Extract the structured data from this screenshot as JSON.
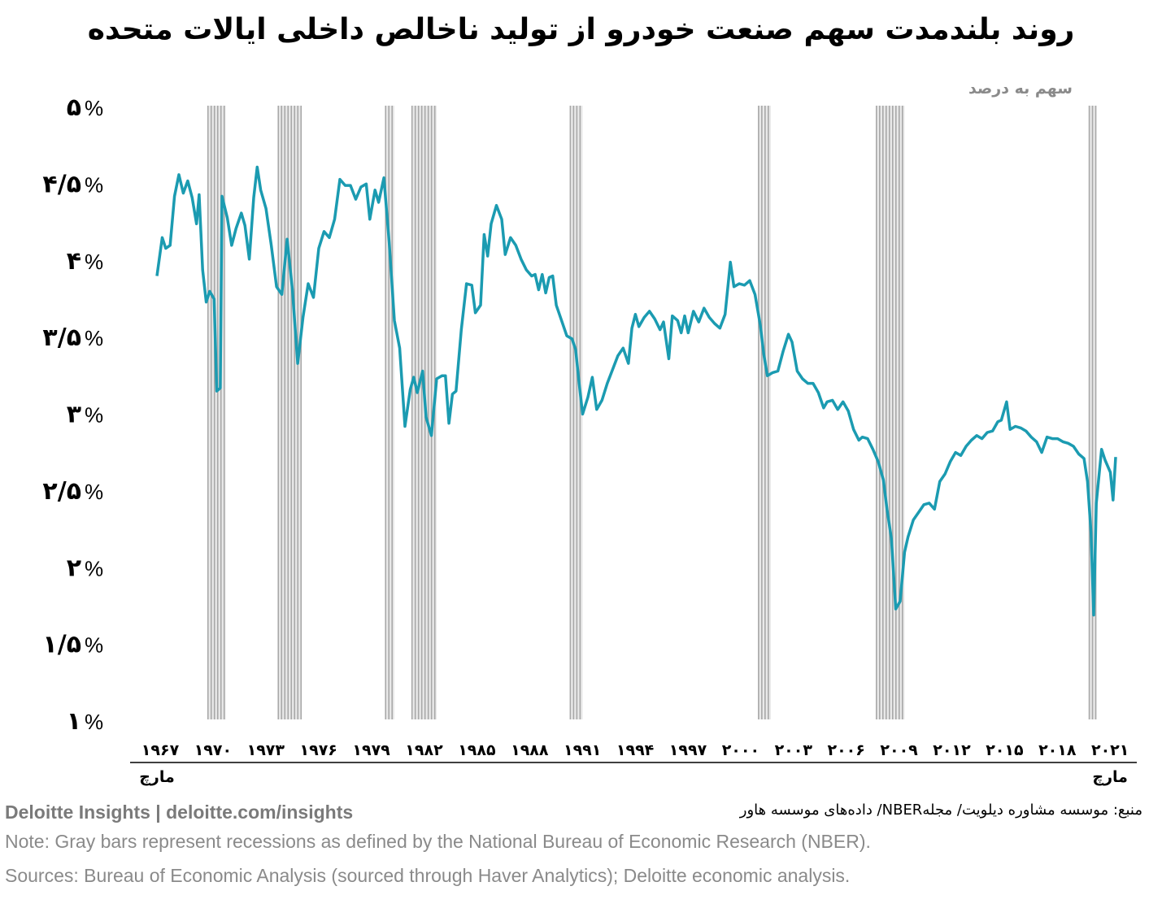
{
  "chart_data": {
    "type": "line",
    "title": "روند بلندمدت سهم صنعت خودرو از تولید ناخالص داخلی ایالات متحده",
    "ylabel": "سهم به درصد",
    "ylim": [
      1,
      5
    ],
    "yticks": [
      {
        "value": 5,
        "label": "۵"
      },
      {
        "value": 4.5,
        "label": "۴/۵"
      },
      {
        "value": 4,
        "label": "۴"
      },
      {
        "value": 3.5,
        "label": "۳/۵"
      },
      {
        "value": 3,
        "label": "۳"
      },
      {
        "value": 2.5,
        "label": "۲/۵"
      },
      {
        "value": 2,
        "label": "۲"
      },
      {
        "value": 1.5,
        "label": "۱/۵"
      },
      {
        "value": 1,
        "label": "۱"
      }
    ],
    "ytick_suffix": "%",
    "xlim": [
      1967.0,
      2021.5
    ],
    "xticks": [
      {
        "value": 1967,
        "label": "۱۹۶۷"
      },
      {
        "value": 1970,
        "label": "۱۹۷۰"
      },
      {
        "value": 1973,
        "label": "۱۹۷۳"
      },
      {
        "value": 1976,
        "label": "۱۹۷۶"
      },
      {
        "value": 1979,
        "label": "۱۹۷۹"
      },
      {
        "value": 1982,
        "label": "۱۹۸۲"
      },
      {
        "value": 1985,
        "label": "۱۹۸۵"
      },
      {
        "value": 1988,
        "label": "۱۹۸۸"
      },
      {
        "value": 1991,
        "label": "۱۹۹۱"
      },
      {
        "value": 1994,
        "label": "۱۹۹۴"
      },
      {
        "value": 1997,
        "label": "۱۹۹۷"
      },
      {
        "value": 2000,
        "label": "۲۰۰۰"
      },
      {
        "value": 2003,
        "label": "۲۰۰۳"
      },
      {
        "value": 2006,
        "label": "۲۰۰۶"
      },
      {
        "value": 2009,
        "label": "۲۰۰۹"
      },
      {
        "value": 2012,
        "label": "۲۰۱۲"
      },
      {
        "value": 2015,
        "label": "۲۰۱۵"
      },
      {
        "value": 2018,
        "label": "۲۰۱۸"
      },
      {
        "value": 2021,
        "label": "۲۰۲۱"
      }
    ],
    "start_label": "مارچ",
    "end_label": "مارچ",
    "recessions": [
      [
        1969.9,
        1970.9
      ],
      [
        1973.9,
        1975.2
      ],
      [
        1980.0,
        1980.5
      ],
      [
        1981.5,
        1982.9
      ],
      [
        1990.5,
        1991.2
      ],
      [
        2001.2,
        2001.9
      ],
      [
        2007.9,
        2009.5
      ],
      [
        2020.0,
        2020.4
      ]
    ],
    "series": [
      {
        "name": "سهم صنعت خودرو از تولید ناخالص داخلی",
        "color": "#1b9bb1",
        "points": [
          [
            1967.0,
            3.89
          ],
          [
            1967.3,
            4.14
          ],
          [
            1967.5,
            4.07
          ],
          [
            1967.75,
            4.09
          ],
          [
            1968.0,
            4.41
          ],
          [
            1968.25,
            4.55
          ],
          [
            1968.5,
            4.43
          ],
          [
            1968.75,
            4.51
          ],
          [
            1969.0,
            4.4
          ],
          [
            1969.25,
            4.23
          ],
          [
            1969.4,
            4.42
          ],
          [
            1969.6,
            3.93
          ],
          [
            1969.8,
            3.72
          ],
          [
            1970.0,
            3.79
          ],
          [
            1970.25,
            3.74
          ],
          [
            1970.4,
            3.14
          ],
          [
            1970.6,
            3.16
          ],
          [
            1970.7,
            4.41
          ],
          [
            1971.0,
            4.27
          ],
          [
            1971.25,
            4.09
          ],
          [
            1971.5,
            4.2
          ],
          [
            1971.8,
            4.3
          ],
          [
            1972.0,
            4.22
          ],
          [
            1972.25,
            4.0
          ],
          [
            1972.5,
            4.4
          ],
          [
            1972.7,
            4.6
          ],
          [
            1972.9,
            4.45
          ],
          [
            1973.2,
            4.33
          ],
          [
            1973.5,
            4.09
          ],
          [
            1973.8,
            3.82
          ],
          [
            1974.1,
            3.77
          ],
          [
            1974.4,
            4.13
          ],
          [
            1974.7,
            3.8
          ],
          [
            1975.0,
            3.32
          ],
          [
            1975.3,
            3.62
          ],
          [
            1975.6,
            3.84
          ],
          [
            1975.9,
            3.75
          ],
          [
            1976.2,
            4.07
          ],
          [
            1976.5,
            4.18
          ],
          [
            1976.8,
            4.14
          ],
          [
            1977.1,
            4.26
          ],
          [
            1977.4,
            4.52
          ],
          [
            1977.7,
            4.48
          ],
          [
            1978.0,
            4.48
          ],
          [
            1978.3,
            4.39
          ],
          [
            1978.6,
            4.47
          ],
          [
            1978.9,
            4.49
          ],
          [
            1979.1,
            4.26
          ],
          [
            1979.4,
            4.45
          ],
          [
            1979.6,
            4.37
          ],
          [
            1979.9,
            4.53
          ],
          [
            1980.2,
            4.11
          ],
          [
            1980.5,
            3.6
          ],
          [
            1980.8,
            3.42
          ],
          [
            1981.1,
            2.91
          ],
          [
            1981.4,
            3.15
          ],
          [
            1981.6,
            3.23
          ],
          [
            1981.8,
            3.13
          ],
          [
            1982.1,
            3.27
          ],
          [
            1982.3,
            2.97
          ],
          [
            1982.6,
            2.85
          ],
          [
            1982.9,
            3.22
          ],
          [
            1983.2,
            3.24
          ],
          [
            1983.4,
            3.24
          ],
          [
            1983.6,
            2.93
          ],
          [
            1983.8,
            3.12
          ],
          [
            1984.0,
            3.14
          ],
          [
            1984.3,
            3.54
          ],
          [
            1984.6,
            3.84
          ],
          [
            1984.9,
            3.83
          ],
          [
            1985.1,
            3.65
          ],
          [
            1985.4,
            3.7
          ],
          [
            1985.6,
            4.16
          ],
          [
            1985.8,
            4.02
          ],
          [
            1986.0,
            4.23
          ],
          [
            1986.3,
            4.35
          ],
          [
            1986.6,
            4.26
          ],
          [
            1986.8,
            4.03
          ],
          [
            1987.1,
            4.14
          ],
          [
            1987.4,
            4.09
          ],
          [
            1987.7,
            4.0
          ],
          [
            1988.0,
            3.93
          ],
          [
            1988.3,
            3.89
          ],
          [
            1988.5,
            3.9
          ],
          [
            1988.7,
            3.8
          ],
          [
            1988.9,
            3.9
          ],
          [
            1989.1,
            3.78
          ],
          [
            1989.3,
            3.88
          ],
          [
            1989.5,
            3.89
          ],
          [
            1989.7,
            3.7
          ],
          [
            1990.0,
            3.6
          ],
          [
            1990.3,
            3.5
          ],
          [
            1990.6,
            3.48
          ],
          [
            1990.8,
            3.41
          ],
          [
            1991.0,
            3.19
          ],
          [
            1991.2,
            2.99
          ],
          [
            1991.5,
            3.1
          ],
          [
            1991.75,
            3.23
          ],
          [
            1992.0,
            3.02
          ],
          [
            1992.3,
            3.08
          ],
          [
            1992.6,
            3.19
          ],
          [
            1992.9,
            3.28
          ],
          [
            1993.2,
            3.37
          ],
          [
            1993.5,
            3.42
          ],
          [
            1993.8,
            3.32
          ],
          [
            1994.0,
            3.55
          ],
          [
            1994.2,
            3.64
          ],
          [
            1994.4,
            3.56
          ],
          [
            1994.7,
            3.62
          ],
          [
            1995.0,
            3.66
          ],
          [
            1995.3,
            3.61
          ],
          [
            1995.6,
            3.54
          ],
          [
            1995.8,
            3.59
          ],
          [
            1996.1,
            3.35
          ],
          [
            1996.3,
            3.63
          ],
          [
            1996.6,
            3.6
          ],
          [
            1996.8,
            3.52
          ],
          [
            1997.0,
            3.63
          ],
          [
            1997.2,
            3.52
          ],
          [
            1997.5,
            3.66
          ],
          [
            1997.8,
            3.59
          ],
          [
            1998.1,
            3.68
          ],
          [
            1998.4,
            3.62
          ],
          [
            1998.7,
            3.58
          ],
          [
            1999.0,
            3.55
          ],
          [
            1999.3,
            3.64
          ],
          [
            1999.6,
            3.98
          ],
          [
            1999.8,
            3.82
          ],
          [
            2000.1,
            3.84
          ],
          [
            2000.4,
            3.83
          ],
          [
            2000.7,
            3.86
          ],
          [
            2001.0,
            3.77
          ],
          [
            2001.3,
            3.57
          ],
          [
            2001.5,
            3.38
          ],
          [
            2001.7,
            3.24
          ],
          [
            2002.0,
            3.26
          ],
          [
            2002.3,
            3.27
          ],
          [
            2002.6,
            3.4
          ],
          [
            2002.9,
            3.51
          ],
          [
            2003.1,
            3.46
          ],
          [
            2003.4,
            3.27
          ],
          [
            2003.7,
            3.22
          ],
          [
            2004.0,
            3.19
          ],
          [
            2004.3,
            3.19
          ],
          [
            2004.6,
            3.13
          ],
          [
            2004.9,
            3.03
          ],
          [
            2005.1,
            3.07
          ],
          [
            2005.4,
            3.08
          ],
          [
            2005.7,
            3.02
          ],
          [
            2006.0,
            3.07
          ],
          [
            2006.3,
            3.01
          ],
          [
            2006.6,
            2.89
          ],
          [
            2006.9,
            2.82
          ],
          [
            2007.1,
            2.84
          ],
          [
            2007.4,
            2.83
          ],
          [
            2007.7,
            2.76
          ],
          [
            2008.0,
            2.68
          ],
          [
            2008.3,
            2.56
          ],
          [
            2008.5,
            2.37
          ],
          [
            2008.75,
            2.18
          ],
          [
            2009.0,
            1.72
          ],
          [
            2009.25,
            1.77
          ],
          [
            2009.5,
            2.09
          ],
          [
            2009.7,
            2.19
          ],
          [
            2010.0,
            2.3
          ],
          [
            2010.3,
            2.35
          ],
          [
            2010.6,
            2.4
          ],
          [
            2010.9,
            2.41
          ],
          [
            2011.2,
            2.37
          ],
          [
            2011.5,
            2.55
          ],
          [
            2011.8,
            2.6
          ],
          [
            2012.1,
            2.68
          ],
          [
            2012.4,
            2.74
          ],
          [
            2012.7,
            2.72
          ],
          [
            2013.0,
            2.78
          ],
          [
            2013.3,
            2.82
          ],
          [
            2013.6,
            2.85
          ],
          [
            2013.9,
            2.83
          ],
          [
            2014.2,
            2.87
          ],
          [
            2014.5,
            2.88
          ],
          [
            2014.8,
            2.94
          ],
          [
            2015.0,
            2.95
          ],
          [
            2015.3,
            3.07
          ],
          [
            2015.5,
            2.89
          ],
          [
            2015.8,
            2.91
          ],
          [
            2016.1,
            2.9
          ],
          [
            2016.4,
            2.88
          ],
          [
            2016.7,
            2.84
          ],
          [
            2017.0,
            2.81
          ],
          [
            2017.3,
            2.74
          ],
          [
            2017.6,
            2.84
          ],
          [
            2017.9,
            2.83
          ],
          [
            2018.2,
            2.83
          ],
          [
            2018.5,
            2.81
          ],
          [
            2018.8,
            2.8
          ],
          [
            2019.1,
            2.78
          ],
          [
            2019.4,
            2.73
          ],
          [
            2019.7,
            2.7
          ],
          [
            2019.9,
            2.55
          ],
          [
            2020.1,
            2.22
          ],
          [
            2020.25,
            1.68
          ],
          [
            2020.4,
            2.41
          ],
          [
            2020.7,
            2.76
          ],
          [
            2020.9,
            2.69
          ],
          [
            2021.2,
            2.61
          ],
          [
            2021.35,
            2.43
          ],
          [
            2021.5,
            2.71
          ]
        ]
      }
    ]
  },
  "footer": {
    "brand": "Deloitte Insights | deloitte.com/insights",
    "source_fa": "منبع: موسسه مشاوره دیلویت/ مجلهNBER/ داده‌های موسسه هاور",
    "note": "Note: Gray bars represent recessions as defined by the National Bureau of Economic Research (NBER).",
    "sources": "Sources: Bureau of Economic Analysis (sourced through Haver Analytics); Deloitte economic analysis."
  }
}
